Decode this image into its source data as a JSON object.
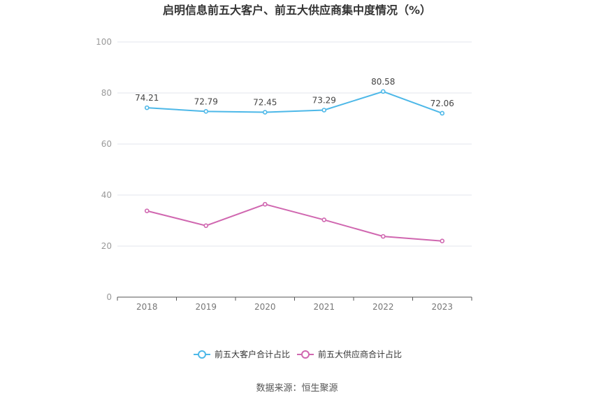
{
  "chart_data": {
    "type": "line",
    "title": "启明信息前五大客户、前五大供应商集中度情况（%）",
    "categories": [
      "2018",
      "2019",
      "2020",
      "2021",
      "2022",
      "2023"
    ],
    "ylim": [
      0,
      100
    ],
    "yticks": [
      0,
      20,
      40,
      60,
      80,
      100
    ],
    "grid": true,
    "legend_position": "bottom",
    "series": [
      {
        "name": "前五大客户合计占比",
        "color": "#4db8e8",
        "values": [
          74.21,
          72.79,
          72.45,
          73.29,
          80.58,
          72.06
        ],
        "labels": [
          "74.21",
          "72.79",
          "72.45",
          "73.29",
          "80.58",
          "72.06"
        ]
      },
      {
        "name": "前五大供应商合计占比",
        "color": "#d067b0",
        "values": [
          33.8,
          28.0,
          36.4,
          30.3,
          23.8,
          22.0
        ]
      }
    ]
  },
  "source": "数据来源：恒生聚源"
}
